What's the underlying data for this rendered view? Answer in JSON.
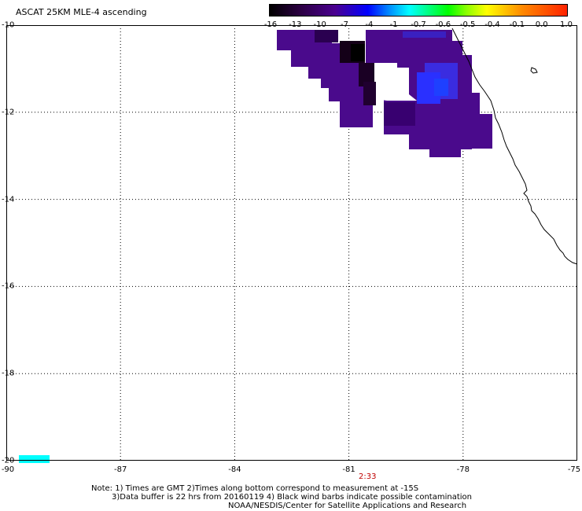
{
  "title": "ASCAT 25KM MLE-4 ascending",
  "colorbar": {
    "ticks": [
      "-16",
      "-13",
      "-10",
      "-7",
      "-4",
      "-1",
      "-0.7",
      "-0.6",
      "-0.5",
      "-0.4",
      "-0.1",
      "0.0",
      "1.0"
    ]
  },
  "axes": {
    "lat_labels": [
      "-10",
      "-12",
      "-14",
      "-16",
      "-18",
      "-20"
    ],
    "lon_labels": [
      "-90",
      "-87",
      "-84",
      "-81",
      "-78",
      "-75"
    ],
    "lat_values": [
      -10,
      -12,
      -14,
      -16,
      -18,
      -20
    ],
    "lon_values": [
      -90,
      -87,
      -84,
      -81,
      -78,
      -75
    ],
    "lat_range": [
      -20,
      -10
    ],
    "lon_range": [
      -90,
      -75
    ],
    "grid": "dotted"
  },
  "time_label": "2:33",
  "notes": [
    "Note: 1) Times are GMT 2)Times along bottom correspond to measurement at -15S",
    "3)Data buffer is 22 hrs from 20160119 4) Black wind barbs indicate possible contamination",
    "NOAA/NESDIS/Center for Satellite Applications and Research"
  ],
  "colors": {
    "swath_main": "#4a0a8c",
    "swath_dark": "#1a0024",
    "swath_blue": "#2a30ff",
    "legend_swatch": "#00ffff",
    "time_label": "#c00000"
  }
}
